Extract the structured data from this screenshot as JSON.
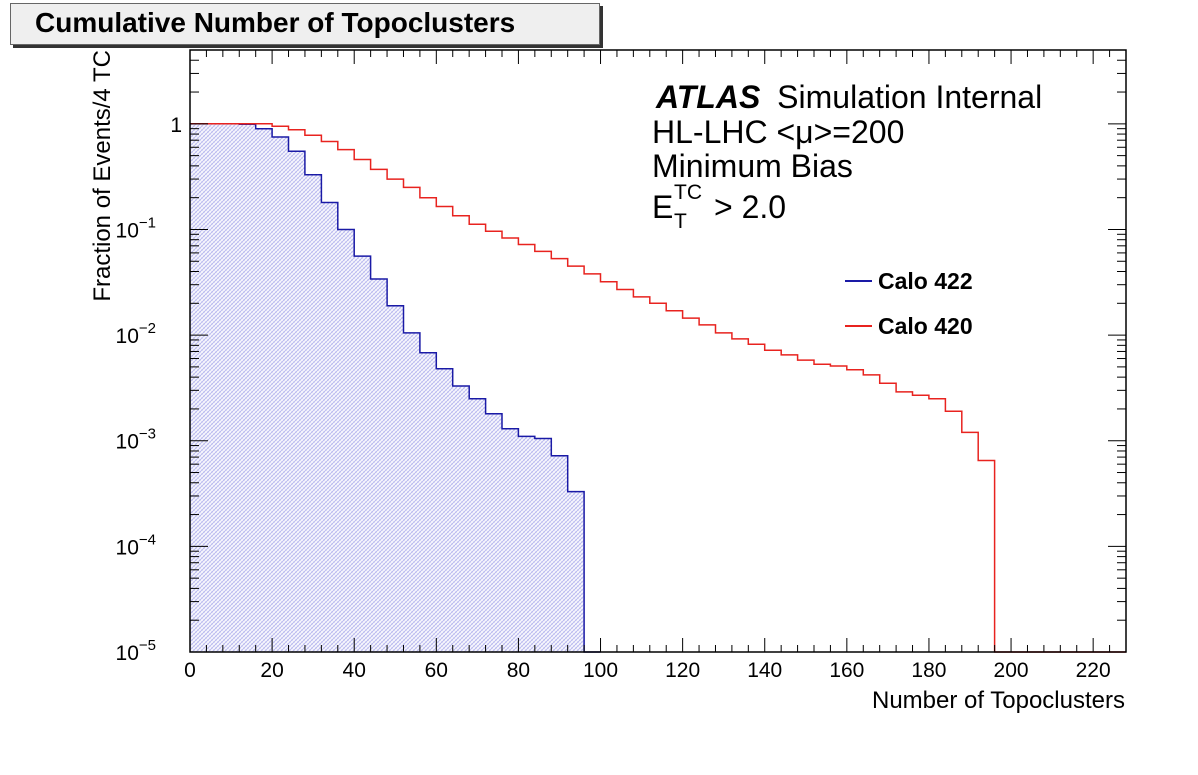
{
  "chart_data": {
    "type": "histogram",
    "title": "Cumulative Number of Topoclusters",
    "xlabel": "Number of Topoclusters",
    "ylabel": "Fraction of Events/4 TC",
    "xlim": [
      0,
      228
    ],
    "ylim": [
      1e-05,
      5
    ],
    "yscale": "log",
    "bin_width": 4,
    "x_ticks": [
      "0",
      "20",
      "40",
      "60",
      "80",
      "100",
      "120",
      "140",
      "160",
      "180",
      "200",
      "220"
    ],
    "y_ticks": [
      {
        "base": "1",
        "exp": ""
      },
      {
        "base": "10",
        "exp": "−1"
      },
      {
        "base": "10",
        "exp": "−2"
      },
      {
        "base": "10",
        "exp": "−3"
      },
      {
        "base": "10",
        "exp": "−4"
      },
      {
        "base": "10",
        "exp": "−5"
      }
    ],
    "annotations": {
      "atlas": "ATLAS",
      "atlas_suffix": "Simulation Internal",
      "line2": "HL-LHC <μ>=200",
      "line3": "Minimum Bias",
      "et_main": "E",
      "et_sup": "TC",
      "et_sub": "T",
      "et_cut": "> 2.0"
    },
    "legend_position": "right, below annotations",
    "series": [
      {
        "name": "Calo 422",
        "color": "#1a1aa6",
        "fill": "hatched light blue",
        "bin_edges_start": 0,
        "values": [
          1.0,
          1.0,
          1.0,
          0.99,
          0.9,
          0.75,
          0.55,
          0.33,
          0.18,
          0.1,
          0.056,
          0.034,
          0.019,
          0.0105,
          0.0068,
          0.0048,
          0.0033,
          0.0025,
          0.0018,
          0.0013,
          0.0011,
          0.00105,
          0.00072,
          0.00033,
          1e-05
        ]
      },
      {
        "name": "Calo 420",
        "color": "#e8231f",
        "fill": "none",
        "bin_edges_start": 0,
        "values": [
          1.0,
          1.0,
          1.0,
          1.0,
          1.0,
          0.95,
          0.88,
          0.78,
          0.68,
          0.57,
          0.46,
          0.37,
          0.3,
          0.25,
          0.2,
          0.165,
          0.135,
          0.112,
          0.096,
          0.083,
          0.072,
          0.062,
          0.053,
          0.045,
          0.038,
          0.032,
          0.027,
          0.023,
          0.02,
          0.017,
          0.0145,
          0.0125,
          0.0105,
          0.0092,
          0.0082,
          0.0072,
          0.0065,
          0.0058,
          0.0053,
          0.0051,
          0.0047,
          0.0042,
          0.0035,
          0.0029,
          0.0027,
          0.0025,
          0.0019,
          0.0012,
          0.00065,
          1e-05,
          1e-05,
          1e-05,
          1e-05,
          1e-05,
          1e-05,
          1e-05,
          1e-05
        ]
      }
    ]
  }
}
